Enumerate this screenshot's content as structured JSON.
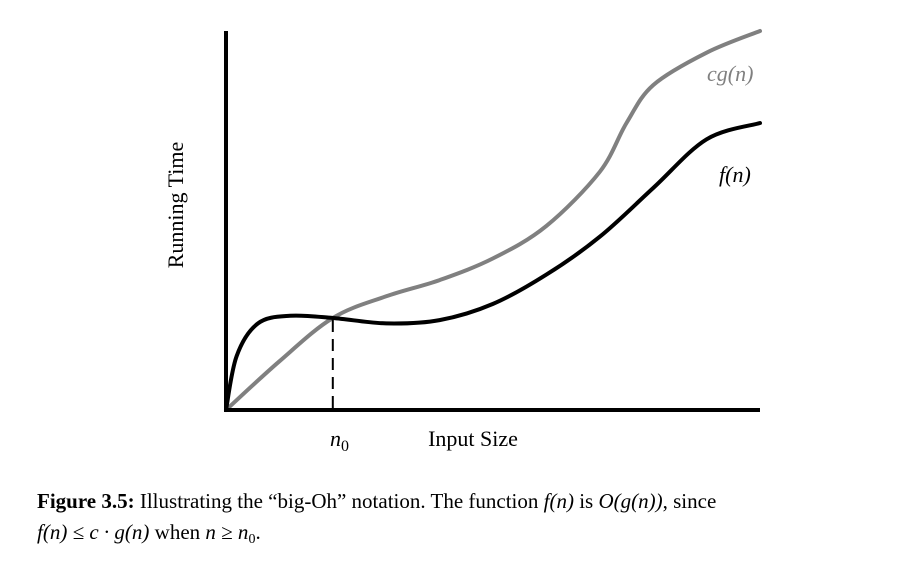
{
  "chart_data": {
    "type": "line",
    "xlabel": "Input Size",
    "ylabel": "Running Time",
    "marker": {
      "label": "n",
      "subscript": "0",
      "x": 1.0
    },
    "xlim": [
      0,
      5
    ],
    "ylim": [
      0,
      3.5
    ],
    "series": [
      {
        "name": "cg(n)",
        "color": "#808080",
        "points": [
          [
            0,
            0
          ],
          [
            0.5,
            0.45
          ],
          [
            1.0,
            0.85
          ],
          [
            1.5,
            1.05
          ],
          [
            2.0,
            1.2
          ],
          [
            2.5,
            1.4
          ],
          [
            3.0,
            1.7
          ],
          [
            3.5,
            2.2
          ],
          [
            3.75,
            2.65
          ],
          [
            4.0,
            3.0
          ],
          [
            4.5,
            3.3
          ],
          [
            5.0,
            3.5
          ]
        ]
      },
      {
        "name": "f(n)",
        "color": "#000000",
        "points": [
          [
            0,
            0
          ],
          [
            0.1,
            0.5
          ],
          [
            0.3,
            0.8
          ],
          [
            0.6,
            0.87
          ],
          [
            1.0,
            0.85
          ],
          [
            1.5,
            0.8
          ],
          [
            2.0,
            0.83
          ],
          [
            2.5,
            0.98
          ],
          [
            3.0,
            1.25
          ],
          [
            3.5,
            1.6
          ],
          [
            4.0,
            2.05
          ],
          [
            4.5,
            2.5
          ],
          [
            5.0,
            2.65
          ]
        ]
      }
    ]
  },
  "caption": {
    "label": "Figure 3.5:",
    "part1": " Illustrating the “big-Oh” notation. The function ",
    "f_of_n": "f(n)",
    "part2": " is ",
    "big_o": "O(g(n))",
    "part3": ", since",
    "ineq_lhs": "f(n) ≤ c · g(n)",
    "part4": " when ",
    "ineq2": "n ≥ n",
    "ineq2_sub": "0",
    "part5": "."
  }
}
